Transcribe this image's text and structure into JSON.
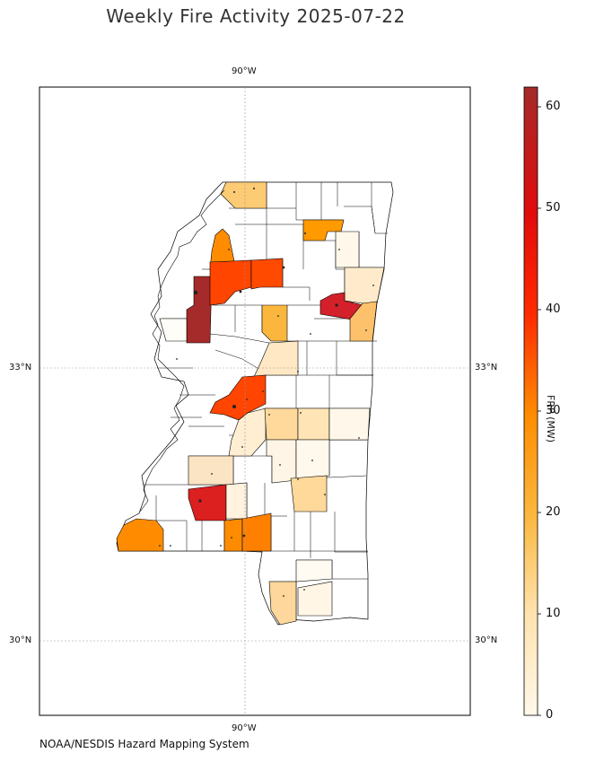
{
  "title": "Weekly Fire Activity 2025-07-22",
  "credit": "NOAA/NESDIS Hazard Mapping System",
  "map": {
    "grid": true,
    "lon_labels": [
      "90°W",
      "90°W"
    ],
    "lat_labels": {
      "left": [
        "33°N",
        "30°N"
      ],
      "right": [
        "33°N",
        "30°N"
      ]
    },
    "region": "Mississippi counties"
  },
  "colorbar": {
    "label": "FRP (MW)",
    "ticks": [
      "0",
      "10",
      "20",
      "30",
      "40",
      "50",
      "60"
    ],
    "min": 0,
    "max": 62,
    "colors": [
      "#fff8ea",
      "#ffe3b0",
      "#fbb73d",
      "#ff8c00",
      "#ff3a00",
      "#e00c0c",
      "#a52a2a"
    ]
  },
  "counties_with_fire": [
    {
      "name": "northwest-1",
      "frp": 12
    },
    {
      "name": "northwest-2",
      "frp": 24
    },
    {
      "name": "delta-central",
      "frp": 60
    },
    {
      "name": "delta-east",
      "frp": 31
    },
    {
      "name": "north-central",
      "frp": 29
    },
    {
      "name": "northeast-1",
      "frp": 20
    },
    {
      "name": "northeast-2",
      "frp": 2
    },
    {
      "name": "east-1",
      "frp": 5
    },
    {
      "name": "east-2",
      "frp": 52
    },
    {
      "name": "east-3",
      "frp": 12
    },
    {
      "name": "central-1",
      "frp": 14
    },
    {
      "name": "central-2",
      "frp": 5
    },
    {
      "name": "central-3",
      "frp": 29
    },
    {
      "name": "central-4",
      "frp": 6
    },
    {
      "name": "central-5",
      "frp": 8
    },
    {
      "name": "central-6",
      "frp": 8
    },
    {
      "name": "southwest-1",
      "frp": 6
    },
    {
      "name": "southwest-2",
      "frp": 55
    },
    {
      "name": "south-1",
      "frp": 24
    },
    {
      "name": "south-2",
      "frp": 25
    },
    {
      "name": "south-3",
      "frp": 9
    },
    {
      "name": "coast-1",
      "frp": 8
    },
    {
      "name": "coast-2",
      "frp": 3
    }
  ]
}
